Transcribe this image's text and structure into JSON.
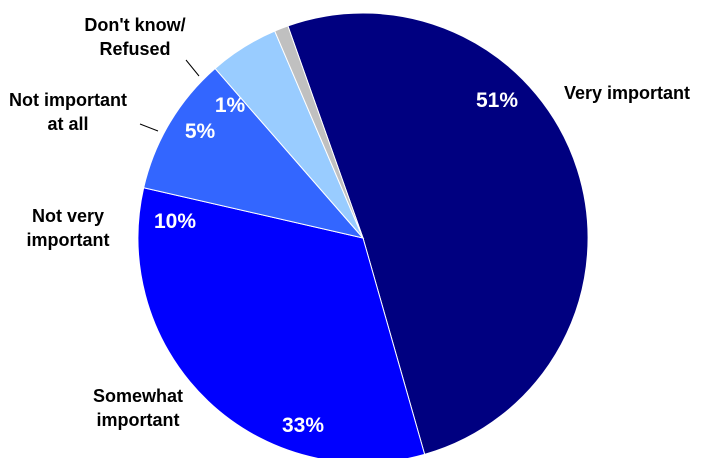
{
  "chart_data": {
    "type": "pie",
    "title": "",
    "slices": [
      {
        "label": "Very important",
        "label_lines": [
          "Very important"
        ],
        "value": 51,
        "display": "51%",
        "color": "#000080"
      },
      {
        "label": "Somewhat important",
        "label_lines": [
          "Somewhat",
          "important"
        ],
        "value": 33,
        "display": "33%",
        "color": "#0000ff"
      },
      {
        "label": "Not very important",
        "label_lines": [
          "Not very",
          "important"
        ],
        "value": 10,
        "display": "10%",
        "color": "#3366ff"
      },
      {
        "label": "Not important at all",
        "label_lines": [
          "Not important",
          "at all"
        ],
        "value": 5,
        "display": "5%",
        "color": "#99ccff"
      },
      {
        "label": "Don't know/ Refused",
        "label_lines": [
          "Don't know/",
          "Refused"
        ],
        "value": 1,
        "display": "1%",
        "color": "#c0c0c0"
      }
    ]
  }
}
